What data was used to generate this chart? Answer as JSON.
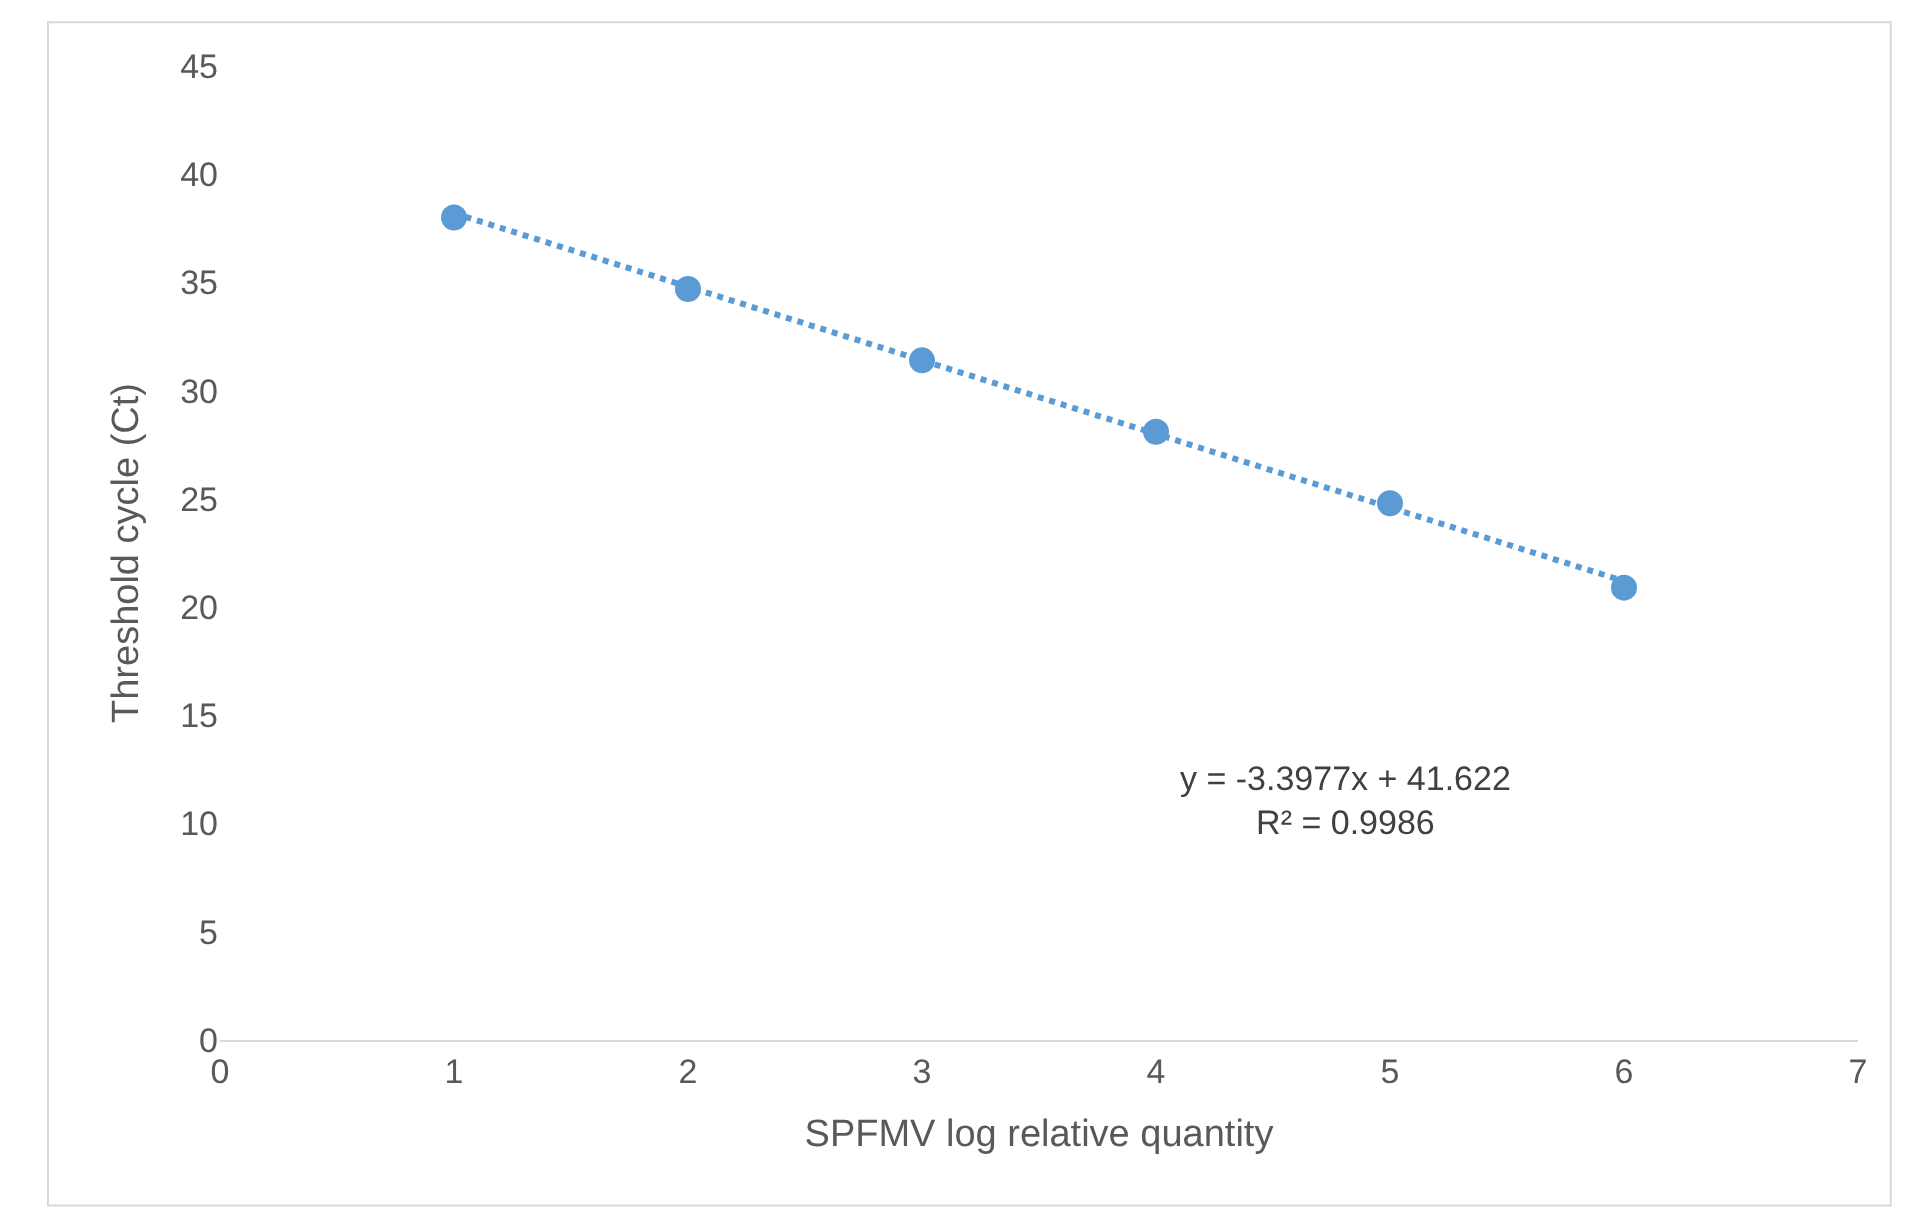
{
  "chart_data": {
    "type": "scatter",
    "xlabel": "SPFMV log relative quantity",
    "ylabel": "Threshold cycle (Ct)",
    "xlim": [
      0,
      7
    ],
    "xticks": [
      0,
      1,
      2,
      3,
      4,
      5,
      6,
      7
    ],
    "ylim": [
      0,
      45
    ],
    "yticks": [
      0,
      5,
      10,
      15,
      20,
      25,
      30,
      35,
      40,
      45
    ],
    "grid": false,
    "series": [
      {
        "marker": "circle",
        "color": "#5b9bd5",
        "x": [
          1,
          2,
          3,
          4,
          5,
          6
        ],
        "values": [
          38.0,
          34.7,
          31.4,
          28.1,
          24.8,
          20.9
        ]
      },
      {
        "type": "line",
        "color": "#5b9bd5",
        "line_style": "dotted",
        "x": [
          1,
          6
        ],
        "values": [
          38.2,
          21.2
        ]
      }
    ],
    "annotations": [
      "y = -3.3977x + 41.622",
      "R² = 0.9986"
    ]
  }
}
